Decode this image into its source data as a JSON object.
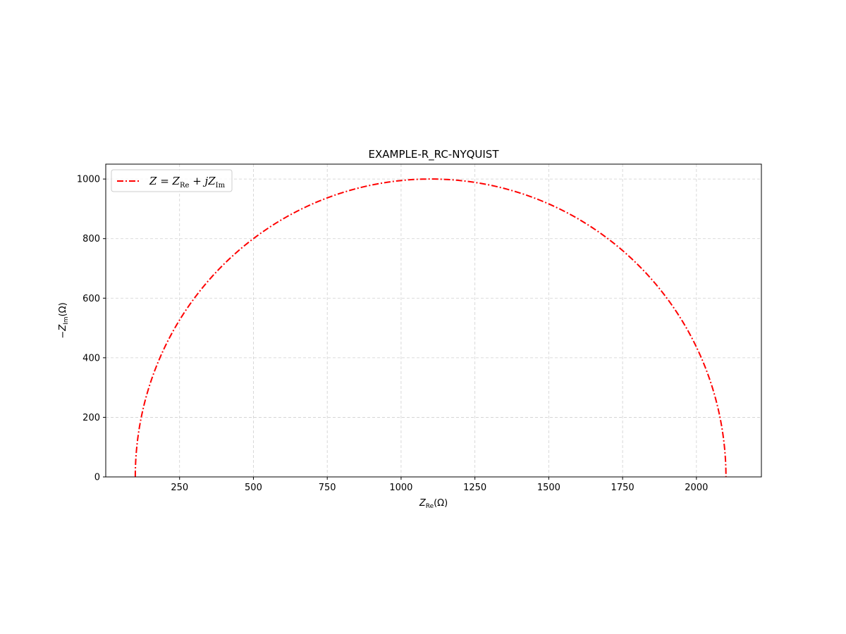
{
  "chart_data": {
    "type": "line",
    "title": "EXAMPLE-R_RC-NYQUIST",
    "xlabel": "Z_Re(Ω)",
    "ylabel": "−Z_Im(Ω)",
    "xlim": [
      0,
      2220
    ],
    "ylim": [
      0,
      1050
    ],
    "xticks": [
      250,
      500,
      750,
      1000,
      1250,
      1500,
      1750,
      2000
    ],
    "yticks": [
      0,
      200,
      400,
      600,
      800,
      1000
    ],
    "grid": true,
    "legend_position": "top-left",
    "series": [
      {
        "name": "Z = Z_Re + jZ_Im",
        "color": "#ff0000",
        "line_style": "dash-dot",
        "shape": "semicircle",
        "center_x": 1100,
        "radius": 1000,
        "x": [
          100,
          120,
          150,
          200,
          250,
          300,
          400,
          500,
          600,
          700,
          800,
          900,
          1000,
          1100,
          1200,
          1300,
          1400,
          1500,
          1600,
          1700,
          1800,
          1900,
          2000,
          2050,
          2080,
          2100
        ],
        "y": [
          0,
          199,
          312,
          436,
          527,
          600,
          714,
          800,
          866,
          917,
          954,
          980,
          995,
          1000,
          995,
          980,
          954,
          917,
          866,
          800,
          714,
          600,
          436,
          312,
          199,
          0
        ]
      }
    ]
  }
}
